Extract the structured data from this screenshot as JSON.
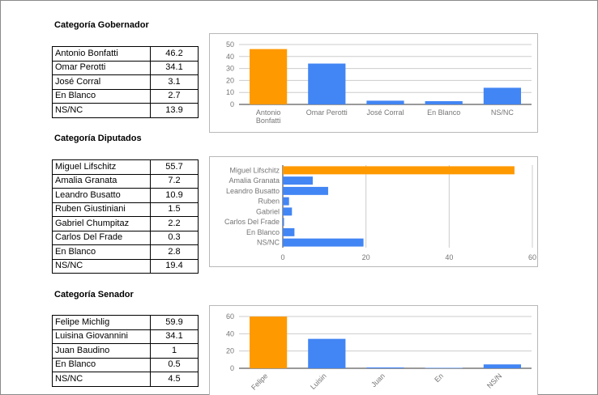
{
  "sections": [
    {
      "title": "Categoría Gobernador",
      "rows": [
        {
          "name": "Antonio Bonfatti",
          "value": "46.2"
        },
        {
          "name": "Omar Perotti",
          "value": "34.1"
        },
        {
          "name": "José Corral",
          "value": "3.1"
        },
        {
          "name": "En Blanco",
          "value": "2.7"
        },
        {
          "name": "NS/NC",
          "value": "13.9"
        }
      ]
    },
    {
      "title": "Categoría Diputados",
      "rows": [
        {
          "name": "Miguel Lifschitz",
          "value": "55.7"
        },
        {
          "name": "Amalia Granata",
          "value": "7.2"
        },
        {
          "name": "Leandro Busatto",
          "value": "10.9"
        },
        {
          "name": "Ruben Giustiniani",
          "value": "1.5"
        },
        {
          "name": "Gabriel Chumpitaz",
          "value": "2.2"
        },
        {
          "name": "Carlos Del Frade",
          "value": "0.3"
        },
        {
          "name": "En Blanco",
          "value": "2.8"
        },
        {
          "name": "NS/NC",
          "value": "19.4"
        }
      ]
    },
    {
      "title": "Categoría Senador",
      "rows": [
        {
          "name": "Felipe Michlig",
          "value": "59.9"
        },
        {
          "name": "Luisina Giovannini",
          "value": "34.1"
        },
        {
          "name": "Juan Baudino",
          "value": "1"
        },
        {
          "name": "En Blanco",
          "value": "0.5"
        },
        {
          "name": "NS/NC",
          "value": "4.5"
        }
      ]
    }
  ],
  "chart_data": [
    {
      "type": "bar",
      "orientation": "vertical",
      "categories": [
        [
          "Antonio",
          "Bonfatti"
        ],
        [
          "Omar Perotti"
        ],
        [
          "José Corral"
        ],
        [
          "En Blanco"
        ],
        [
          "NS/NC"
        ]
      ],
      "values": [
        46.2,
        34.1,
        3.1,
        2.7,
        13.9
      ],
      "yticks": [
        0,
        10,
        20,
        30,
        40,
        50
      ],
      "ylim": [
        0,
        50
      ],
      "grid": true,
      "colors": [
        "#ff9900",
        "#4285f4",
        "#4285f4",
        "#4285f4",
        "#4285f4"
      ]
    },
    {
      "type": "bar",
      "orientation": "horizontal",
      "categories": [
        "Miguel Lifschitz",
        "Amalia Granata",
        "Leandro Busatto",
        "Ruben",
        "Gabriel",
        "Carlos Del Frade",
        "En Blanco",
        "NS/NC"
      ],
      "values": [
        55.7,
        7.2,
        10.9,
        1.5,
        2.2,
        0.3,
        2.8,
        19.4
      ],
      "xticks": [
        0,
        20,
        40,
        60
      ],
      "xlim": [
        0,
        60
      ],
      "grid": true,
      "colors": [
        "#ff9900",
        "#4285f4",
        "#4285f4",
        "#4285f4",
        "#4285f4",
        "#4285f4",
        "#4285f4",
        "#4285f4"
      ]
    },
    {
      "type": "bar",
      "orientation": "vertical",
      "categories": [
        "Felipe",
        "Luisin",
        "Juan",
        "En",
        "NS/N"
      ],
      "values": [
        59.9,
        34.1,
        1,
        0.5,
        4.5
      ],
      "yticks": [
        0,
        20,
        40,
        60
      ],
      "ylim": [
        0,
        60
      ],
      "grid": true,
      "rotated_labels": true,
      "colors": [
        "#ff9900",
        "#4285f4",
        "#4285f4",
        "#4285f4",
        "#4285f4"
      ]
    }
  ]
}
